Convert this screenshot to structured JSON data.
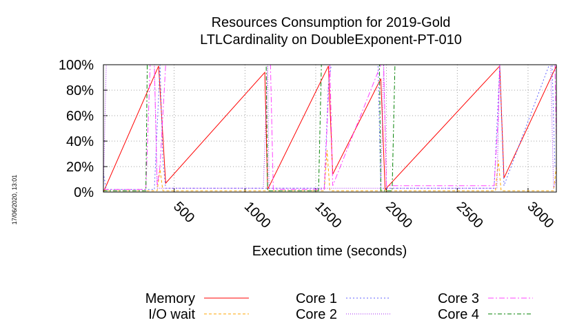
{
  "chart_data": {
    "type": "line",
    "title": [
      "Resources Consumption for 2019-Gold",
      "LTLCardinality on DoubleExponent-PT-010"
    ],
    "xlabel": "Execution time (seconds)",
    "ylabel": "",
    "xlim": [
      0,
      3200
    ],
    "ylim": [
      0,
      100
    ],
    "x_ticks": [
      500,
      1000,
      1500,
      2000,
      2500,
      3000
    ],
    "x_tick_labels": [
      "500",
      "1000",
      "1500",
      "2000",
      "2500",
      "3000"
    ],
    "y_ticks": [
      0,
      20,
      40,
      60,
      80,
      100
    ],
    "y_tick_labels": [
      "0%",
      "20%",
      "40%",
      "60%",
      "80%",
      "100%"
    ],
    "grid": true,
    "legend_position": "bottom",
    "timestamp": "17/06/2020, 13:01",
    "series": [
      {
        "name": "Memory",
        "color": "#ff0000",
        "dash": "",
        "points": [
          [
            0,
            0
          ],
          [
            390,
            99
          ],
          [
            440,
            7
          ],
          [
            1140,
            94
          ],
          [
            1160,
            2
          ],
          [
            1590,
            99
          ],
          [
            1620,
            14
          ],
          [
            1960,
            89
          ],
          [
            1990,
            2
          ],
          [
            2800,
            99
          ],
          [
            2830,
            11
          ],
          [
            3200,
            99
          ]
        ]
      },
      {
        "name": "I/O wait",
        "color": "#ffa500",
        "dash": "4,3",
        "points": [
          [
            0,
            2
          ],
          [
            20,
            1
          ],
          [
            380,
            1
          ],
          [
            400,
            18
          ],
          [
            420,
            1
          ],
          [
            1560,
            1
          ],
          [
            1580,
            33
          ],
          [
            1600,
            1
          ],
          [
            2770,
            1
          ],
          [
            2790,
            25
          ],
          [
            2810,
            1
          ],
          [
            3180,
            1
          ],
          [
            3200,
            20
          ]
        ]
      },
      {
        "name": "Core 1",
        "color": "#5f5fff",
        "dash": "2,3",
        "points": [
          [
            0,
            15
          ],
          [
            20,
            2
          ],
          [
            360,
            2
          ],
          [
            400,
            100
          ],
          [
            420,
            25
          ],
          [
            440,
            3
          ],
          [
            1560,
            3
          ],
          [
            1590,
            85
          ],
          [
            1610,
            100
          ],
          [
            1940,
            100
          ],
          [
            1960,
            3
          ],
          [
            2760,
            3
          ],
          [
            2800,
            100
          ],
          [
            2830,
            5
          ],
          [
            3150,
            100
          ],
          [
            3170,
            100
          ],
          [
            3190,
            20
          ]
        ]
      },
      {
        "name": "Core 2",
        "color": "#a020f0",
        "dash": "1,2",
        "points": [
          [
            0,
            3
          ],
          [
            20,
            100
          ],
          [
            360,
            100
          ],
          [
            380,
            3
          ],
          [
            1130,
            3
          ],
          [
            1160,
            100
          ],
          [
            1170,
            3
          ],
          [
            1960,
            3
          ],
          [
            1980,
            100
          ],
          [
            2000,
            3
          ],
          [
            2780,
            3
          ],
          [
            2800,
            100
          ],
          [
            3160,
            100
          ],
          [
            3180,
            3
          ],
          [
            3200,
            10
          ]
        ]
      },
      {
        "name": "Core 3",
        "color": "#ff40ff",
        "dash": "8,3,2,3",
        "points": [
          [
            0,
            2
          ],
          [
            300,
            2
          ],
          [
            330,
            100
          ],
          [
            360,
            100
          ],
          [
            380,
            5
          ],
          [
            400,
            20
          ],
          [
            440,
            100
          ],
          [
            1180,
            100
          ],
          [
            1200,
            2
          ],
          [
            1560,
            2
          ],
          [
            1600,
            100
          ],
          [
            1620,
            5
          ],
          [
            1960,
            100
          ],
          [
            1980,
            100
          ],
          [
            2000,
            5
          ],
          [
            2760,
            5
          ],
          [
            2790,
            60
          ],
          [
            2800,
            100
          ],
          [
            3190,
            100
          ],
          [
            3200,
            40
          ]
        ]
      },
      {
        "name": "Core 4",
        "color": "#008000",
        "dash": "6,3,2,3",
        "points": [
          [
            0,
            1
          ],
          [
            300,
            1
          ],
          [
            310,
            100
          ],
          [
            1150,
            100
          ],
          [
            1160,
            1
          ],
          [
            1520,
            1
          ],
          [
            1540,
            100
          ],
          [
            1950,
            100
          ],
          [
            1960,
            1
          ],
          [
            2040,
            1
          ],
          [
            2060,
            100
          ],
          [
            3200,
            100
          ]
        ]
      }
    ]
  }
}
